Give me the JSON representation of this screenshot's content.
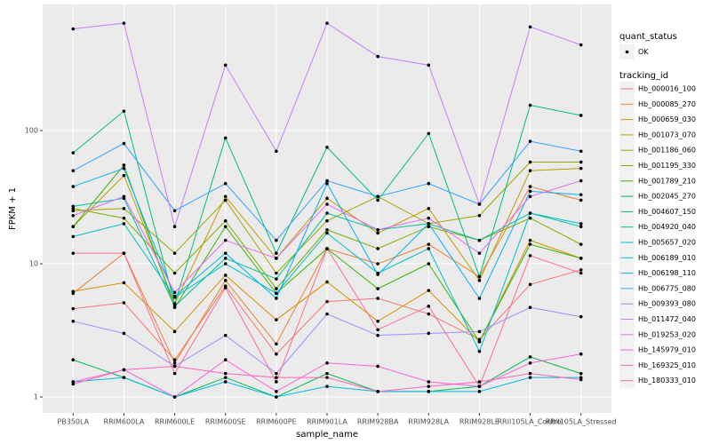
{
  "chart_data": {
    "type": "line",
    "x_label": "sample_name",
    "y_label": "FPKM + 1",
    "log_scale": true,
    "grid": true,
    "point_legend": {
      "title": "quant_status",
      "labels": [
        "OK"
      ]
    },
    "legend_title": "tracking_id",
    "categories": [
      "PB350LA",
      "RRIM600LA",
      "RRIM600LE",
      "RRIM600SE",
      "RRIM600PE",
      "RRIM901LA",
      "RRIM928BA",
      "RRIM928LA",
      "RRIM928LE",
      "RRII105LA_Control",
      "RRII105LA_Stressed"
    ],
    "ylim": [
      0.759,
      885
    ],
    "yticks": [
      1,
      10,
      100
    ],
    "series": [
      {
        "name": "Hb_000016_100",
        "color": "#F8766D",
        "values": [
          4.6,
          5.1,
          1.9,
          6.8,
          2.1,
          5.2,
          5.5,
          4.2,
          2.7,
          7,
          9
        ]
      },
      {
        "name": "Hb_000085_270",
        "color": "#EA8331",
        "values": [
          6,
          12,
          1.8,
          7.5,
          2.5,
          13,
          10,
          14,
          8,
          38,
          30
        ]
      },
      {
        "name": "Hb_000659_030",
        "color": "#D89000",
        "values": [
          6.2,
          7.2,
          3.1,
          8.2,
          3.8,
          7.3,
          3.7,
          6.3,
          2.6,
          15,
          11
        ]
      },
      {
        "name": "Hb_001073_070",
        "color": "#C09B00",
        "values": [
          19,
          46,
          5,
          32,
          11,
          31,
          17,
          26,
          7.5,
          50,
          52
        ]
      },
      {
        "name": "Hb_001186_060",
        "color": "#A3A500",
        "values": [
          25,
          26,
          12,
          30,
          8.5,
          21,
          32,
          20,
          23,
          58,
          58
        ]
      },
      {
        "name": "Hb_001195_330",
        "color": "#7CAE00",
        "values": [
          26,
          22,
          8.5,
          21,
          6.5,
          18,
          13,
          19,
          15,
          22,
          14
        ]
      },
      {
        "name": "Hb_001789_210",
        "color": "#39B600",
        "values": [
          19,
          55,
          4.7,
          19,
          6,
          13,
          6.5,
          10,
          2.6,
          14,
          11
        ]
      },
      {
        "name": "Hb_002045_270",
        "color": "#00BB4E",
        "values": [
          1.9,
          1.4,
          1.0,
          1.4,
          1.0,
          1.5,
          1.1,
          1.1,
          1.2,
          2,
          1.5
        ]
      },
      {
        "name": "Hb_004607_150",
        "color": "#00BF7D",
        "values": [
          68,
          140,
          5,
          88,
          12,
          75,
          30,
          95,
          8,
          155,
          130
        ]
      },
      {
        "name": "Hb_004920_040",
        "color": "#00C1A3",
        "values": [
          27,
          31,
          4.8,
          11,
          7.7,
          24,
          18,
          20,
          15,
          24,
          19
        ]
      },
      {
        "name": "Hb_005657_020",
        "color": "#00BFC4",
        "values": [
          16,
          20,
          5.6,
          10,
          6,
          17,
          8.5,
          13,
          2.2,
          24,
          20
        ]
      },
      {
        "name": "Hb_006189_010",
        "color": "#00BAE0",
        "values": [
          1.3,
          1.4,
          1.0,
          1.3,
          1.0,
          1.2,
          1.1,
          1.1,
          1.1,
          1.4,
          1.4
        ]
      },
      {
        "name": "Hb_006198_110",
        "color": "#00B0F6",
        "values": [
          38,
          52,
          5.7,
          12,
          5.5,
          40,
          8.3,
          20,
          5.5,
          35,
          33
        ]
      },
      {
        "name": "Hb_006775_080",
        "color": "#35A2FF",
        "values": [
          50,
          80,
          25,
          40,
          15,
          42,
          32,
          40,
          28,
          83,
          70
        ]
      },
      {
        "name": "Hb_009393_080",
        "color": "#9590FF",
        "values": [
          3.7,
          3.0,
          1.7,
          2.9,
          1.5,
          4.2,
          2.9,
          3.0,
          3.1,
          4.7,
          4
        ]
      },
      {
        "name": "Hb_011472_040",
        "color": "#C77CFF",
        "values": [
          580,
          640,
          19,
          310,
          70,
          640,
          360,
          310,
          28,
          600,
          440
        ]
      },
      {
        "name": "Hb_019253_020",
        "color": "#E76BF3",
        "values": [
          23,
          32,
          6.1,
          15,
          11,
          28,
          18,
          22,
          12,
          32,
          42
        ]
      },
      {
        "name": "Hb_145979_010",
        "color": "#FA62DB",
        "values": [
          1.3,
          1.6,
          1.0,
          1.9,
          1.1,
          1.8,
          1.7,
          1.3,
          1.2,
          1.8,
          2.1
        ]
      },
      {
        "name": "Hb_169325_010",
        "color": "#FF62BC",
        "values": [
          1.25,
          1.6,
          1.7,
          1.5,
          1.4,
          1.4,
          1.1,
          1.2,
          1.3,
          1.5,
          1.35
        ]
      },
      {
        "name": "Hb_180333_010",
        "color": "#FF6C91",
        "values": [
          12,
          12,
          1.5,
          6.6,
          1.3,
          13,
          3.2,
          4.8,
          1.2,
          11.5,
          8.5
        ]
      }
    ]
  }
}
